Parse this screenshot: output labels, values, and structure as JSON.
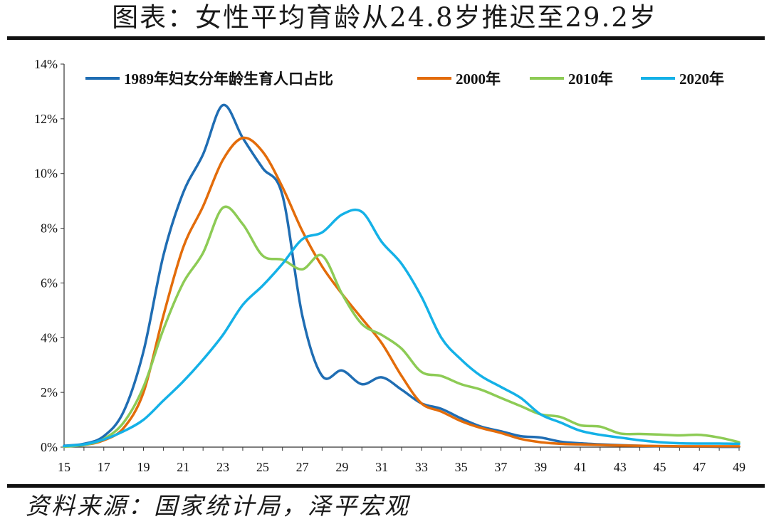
{
  "title": "图表：女性平均育龄从24.8岁推迟至29.2岁",
  "source": "资料来源：国家统计局，泽平宏观",
  "chart_data": {
    "type": "line",
    "title": "图表：女性平均育龄从24.8岁推迟至29.2岁",
    "xlabel": "",
    "ylabel": "",
    "x": [
      15,
      16,
      17,
      18,
      19,
      20,
      21,
      22,
      23,
      24,
      25,
      26,
      27,
      28,
      29,
      30,
      31,
      32,
      33,
      34,
      35,
      36,
      37,
      38,
      39,
      40,
      41,
      42,
      43,
      44,
      45,
      46,
      47,
      48,
      49
    ],
    "x_ticks": [
      "15",
      "17",
      "19",
      "21",
      "23",
      "25",
      "27",
      "29",
      "31",
      "33",
      "35",
      "37",
      "39",
      "41",
      "43",
      "45",
      "47",
      "49"
    ],
    "y_ticks": [
      "0%",
      "2%",
      "4%",
      "6%",
      "8%",
      "10%",
      "12%",
      "14%"
    ],
    "ylim": [
      0,
      14
    ],
    "xlim": [
      15,
      49
    ],
    "y_unit": "%",
    "grid": false,
    "legend_position": "top",
    "series": [
      {
        "name": "1989年妇女分年龄生育人口占比",
        "color": "#1F6DB3",
        "values": [
          0.05,
          0.12,
          0.4,
          1.3,
          3.5,
          7.0,
          9.3,
          10.7,
          12.5,
          11.3,
          10.2,
          9.2,
          4.8,
          2.6,
          2.8,
          2.3,
          2.55,
          2.1,
          1.6,
          1.4,
          1.05,
          0.75,
          0.58,
          0.4,
          0.35,
          0.2,
          0.14,
          0.1,
          0.07,
          0.05,
          0.03,
          0.02,
          0.02,
          0.01,
          0.01
        ]
      },
      {
        "name": "2000年",
        "color": "#E36C0A",
        "values": [
          0.03,
          0.08,
          0.25,
          0.7,
          2.0,
          4.8,
          7.3,
          8.8,
          10.5,
          11.3,
          10.8,
          9.5,
          7.9,
          6.6,
          5.6,
          4.7,
          3.8,
          2.6,
          1.6,
          1.3,
          0.95,
          0.7,
          0.52,
          0.3,
          0.18,
          0.12,
          0.1,
          0.08,
          0.06,
          0.05,
          0.04,
          0.03,
          0.03,
          0.03,
          0.03
        ]
      },
      {
        "name": "2010年",
        "color": "#8DCB55",
        "values": [
          0.02,
          0.08,
          0.3,
          0.9,
          2.2,
          4.3,
          6.0,
          7.1,
          8.75,
          8.15,
          7.0,
          6.85,
          6.5,
          7.0,
          5.6,
          4.5,
          4.1,
          3.6,
          2.75,
          2.6,
          2.3,
          2.1,
          1.8,
          1.5,
          1.2,
          1.1,
          0.8,
          0.75,
          0.5,
          0.48,
          0.46,
          0.43,
          0.45,
          0.35,
          0.18
        ]
      },
      {
        "name": "2020年",
        "color": "#14B1E7",
        "values": [
          0.04,
          0.1,
          0.28,
          0.58,
          1.0,
          1.7,
          2.4,
          3.2,
          4.1,
          5.2,
          5.9,
          6.7,
          7.6,
          7.85,
          8.5,
          8.6,
          7.5,
          6.7,
          5.5,
          4.0,
          3.2,
          2.6,
          2.2,
          1.8,
          1.2,
          0.9,
          0.6,
          0.45,
          0.35,
          0.25,
          0.18,
          0.14,
          0.13,
          0.13,
          0.12
        ]
      }
    ]
  }
}
